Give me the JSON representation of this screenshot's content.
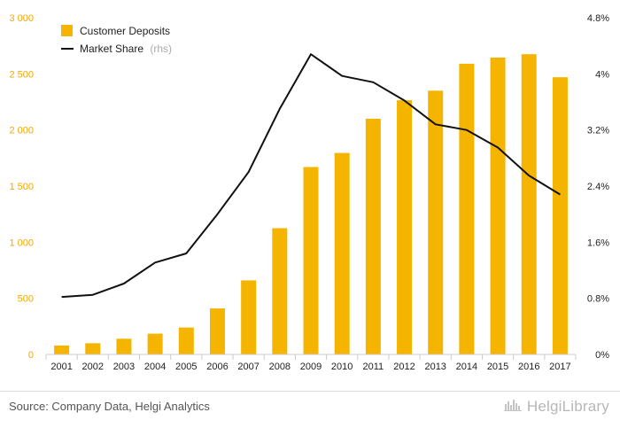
{
  "chart_data": {
    "type": "bar+line",
    "categories": [
      "2001",
      "2002",
      "2003",
      "2004",
      "2005",
      "2006",
      "2007",
      "2008",
      "2009",
      "2010",
      "2011",
      "2012",
      "2013",
      "2014",
      "2015",
      "2016",
      "2017"
    ],
    "series": [
      {
        "name": "Customer Deposits",
        "type": "bar",
        "axis": "left",
        "color": "#f4b400",
        "values": [
          80,
          100,
          140,
          185,
          240,
          410,
          660,
          1125,
          1670,
          1795,
          2100,
          2265,
          2350,
          2590,
          2645,
          2675,
          2470
        ]
      },
      {
        "name": "Market Share",
        "type": "line",
        "axis": "right",
        "color": "#111111",
        "values": [
          0.82,
          0.85,
          1.01,
          1.31,
          1.44,
          2.0,
          2.6,
          3.5,
          4.28,
          3.97,
          3.88,
          3.62,
          3.28,
          3.2,
          2.95,
          2.55,
          2.28
        ]
      }
    ],
    "legend": {
      "deposits_label": "Customer Deposits",
      "share_label": "Market Share",
      "share_suffix": "(rhs)",
      "position": "top-left"
    },
    "y_left": {
      "range": [
        0,
        3000
      ],
      "ticks": [
        0,
        500,
        1000,
        1500,
        2000,
        2500,
        3000
      ],
      "tick_labels": [
        "0",
        "500",
        "1 000",
        "1 500",
        "2 000",
        "2 500",
        "3 000"
      ],
      "color": "#f0a800"
    },
    "y_right": {
      "range": [
        0,
        4.8
      ],
      "ticks": [
        0,
        0.8,
        1.6,
        2.4,
        3.2,
        4.0,
        4.8
      ],
      "tick_labels": [
        "0%",
        "0.8%",
        "1.6%",
        "2.4%",
        "3.2%",
        "4%",
        "4.8%"
      ]
    },
    "grid": false
  },
  "footer": {
    "source": "Source: Company Data, Helgi Analytics",
    "brand": "HelgiLibrary"
  }
}
